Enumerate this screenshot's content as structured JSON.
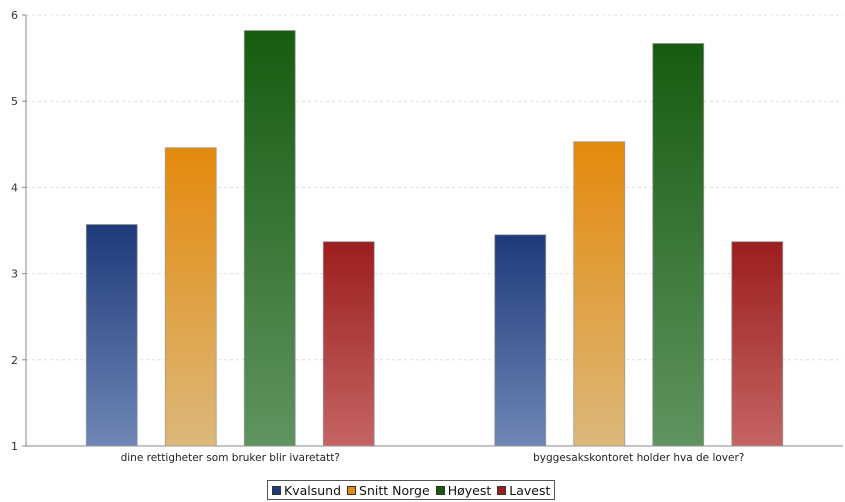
{
  "chart_data": {
    "type": "bar",
    "title": "",
    "xlabel": "",
    "ylabel": "",
    "ylim": [
      1,
      6
    ],
    "yticks": [
      "1",
      "2",
      "3",
      "4",
      "5",
      "6"
    ],
    "grid": true,
    "legend_position": "bottom",
    "categories": [
      "dine rettigheter som bruker blir ivaretatt?",
      "byggesakskontoret holder hva de lover?"
    ],
    "series": [
      {
        "name": "Kvalsund",
        "values": [
          3.57,
          3.45
        ],
        "color": "#1f3a7a",
        "color_light": "#6f86b6"
      },
      {
        "name": "Snitt Norge",
        "values": [
          4.46,
          4.53
        ],
        "color": "#e48a0c",
        "color_light": "#dcb87a"
      },
      {
        "name": "Høyest",
        "values": [
          5.82,
          5.67
        ],
        "color": "#165c10",
        "color_light": "#5f9460"
      },
      {
        "name": "Lavest",
        "values": [
          3.37,
          3.37
        ],
        "color": "#9c1e1e",
        "color_light": "#c46464"
      }
    ]
  }
}
